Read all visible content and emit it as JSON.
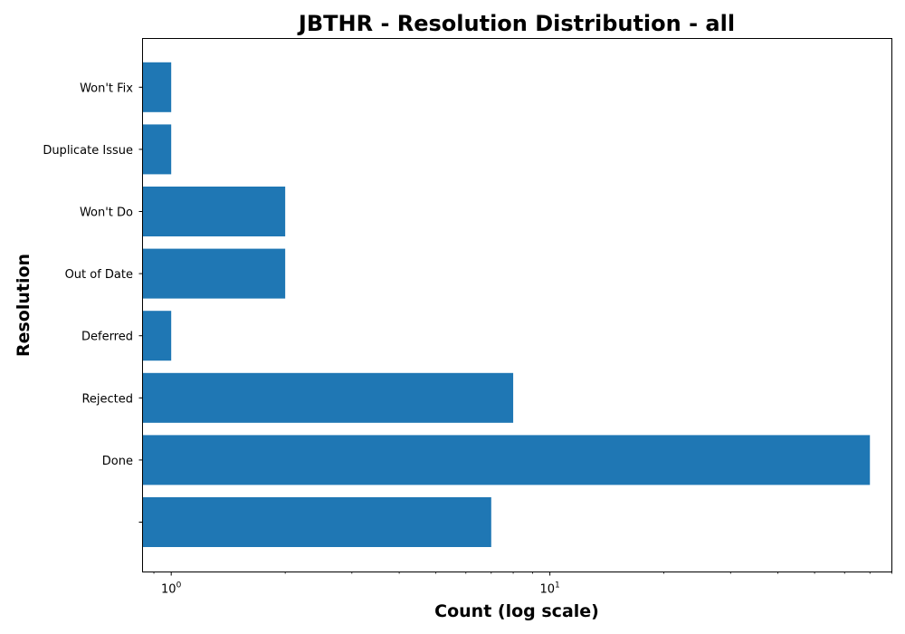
{
  "chart_data": {
    "type": "bar",
    "orientation": "horizontal",
    "title": "JBTHR - Resolution Distribution - all",
    "xlabel": "Count (log scale)",
    "ylabel": "Resolution",
    "x_scale": "log",
    "xlim": [
      0.84,
      80
    ],
    "categories": [
      "",
      "Done",
      "Rejected",
      "Deferred",
      "Out of Date",
      "Won't Do",
      "Duplicate Issue",
      "Won't Fix"
    ],
    "values": [
      7,
      70,
      8,
      1,
      2,
      2,
      1,
      1
    ],
    "x_ticks": [
      {
        "value": 1,
        "base": "10",
        "exp": "0"
      },
      {
        "value": 10,
        "base": "10",
        "exp": "1"
      }
    ],
    "bar_color": "#1f77b4",
    "grid": false,
    "legend": "none"
  }
}
